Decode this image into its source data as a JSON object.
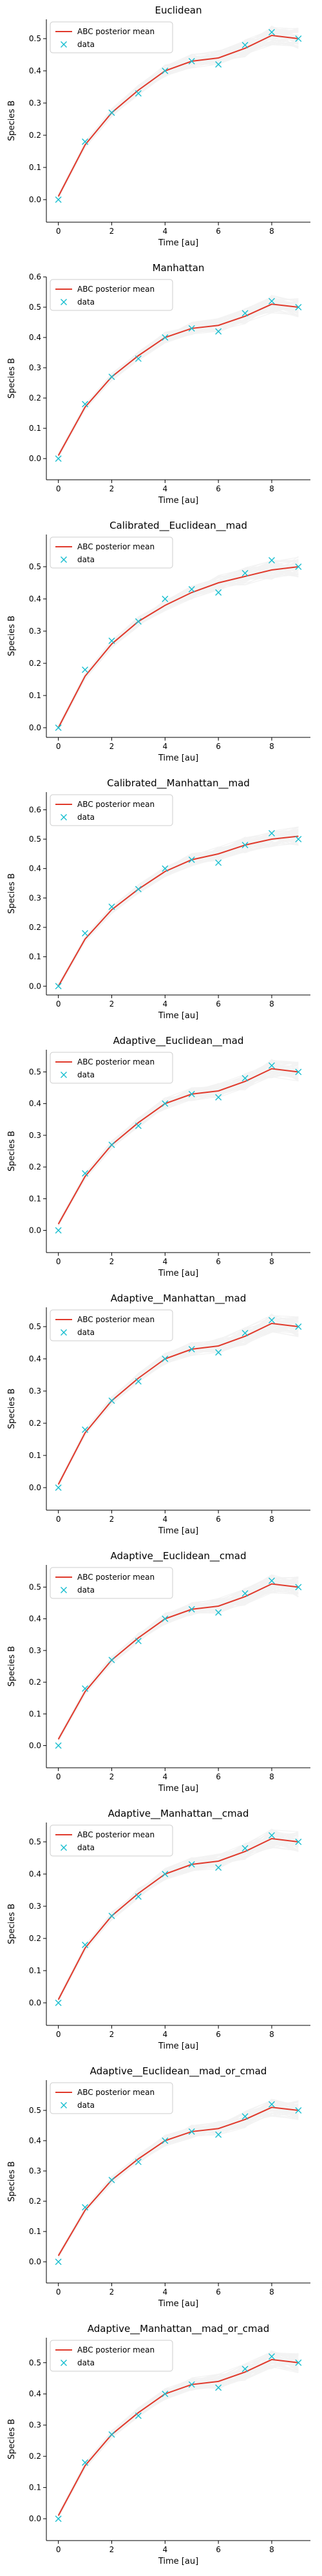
{
  "figure": {
    "xlabel": "Time [au]",
    "ylabel": "Species B",
    "legend_line_label": "ABC posterior mean",
    "legend_marker_label": "data",
    "legend_position": "upper left",
    "grid": false,
    "colors": {
      "mean": "#e0392b",
      "data": "#17becf",
      "samples": "#888888",
      "axis": "#000000"
    }
  },
  "chart_data": [
    {
      "type": "line",
      "title": "Euclidean",
      "xlim": [
        -0.45,
        9.45
      ],
      "ylim": [
        -0.07,
        0.56
      ],
      "xticks": [
        0,
        2,
        4,
        6,
        8
      ],
      "yticks": [
        0.0,
        0.1,
        0.2,
        0.3,
        0.4,
        0.5
      ],
      "tick_fmt": 1,
      "x": [
        0,
        1,
        2,
        3,
        4,
        5,
        6,
        7,
        8,
        9
      ],
      "series": [
        {
          "name": "ABC posterior mean",
          "kind": "line",
          "values": [
            0.01,
            0.17,
            0.27,
            0.34,
            0.4,
            0.43,
            0.44,
            0.47,
            0.51,
            0.5
          ]
        },
        {
          "name": "data",
          "kind": "marker",
          "values": [
            0.0,
            0.18,
            0.27,
            0.33,
            0.4,
            0.43,
            0.42,
            0.48,
            0.52,
            0.5
          ]
        }
      ]
    },
    {
      "type": "line",
      "title": "Manhattan",
      "xlim": [
        -0.45,
        9.45
      ],
      "ylim": [
        -0.07,
        0.6
      ],
      "xticks": [
        0,
        2,
        4,
        6,
        8
      ],
      "yticks": [
        0.0,
        0.1,
        0.2,
        0.3,
        0.4,
        0.5,
        0.6
      ],
      "tick_fmt": 1,
      "x": [
        0,
        1,
        2,
        3,
        4,
        5,
        6,
        7,
        8,
        9
      ],
      "series": [
        {
          "name": "ABC posterior mean",
          "kind": "line",
          "values": [
            0.01,
            0.17,
            0.27,
            0.34,
            0.4,
            0.43,
            0.44,
            0.47,
            0.51,
            0.5
          ]
        },
        {
          "name": "data",
          "kind": "marker",
          "values": [
            0.0,
            0.18,
            0.27,
            0.33,
            0.4,
            0.43,
            0.42,
            0.48,
            0.52,
            0.5
          ]
        }
      ]
    },
    {
      "type": "line",
      "title": "Calibrated__Euclidean__mad",
      "xlim": [
        -0.45,
        9.45
      ],
      "ylim": [
        -0.03,
        0.6
      ],
      "xticks": [
        0,
        2,
        4,
        6,
        8
      ],
      "yticks": [
        0.0,
        0.1,
        0.2,
        0.3,
        0.4,
        0.5
      ],
      "tick_fmt": 1,
      "x": [
        0,
        1,
        2,
        3,
        4,
        5,
        6,
        7,
        8,
        9
      ],
      "series": [
        {
          "name": "ABC posterior mean",
          "kind": "line",
          "values": [
            0.0,
            0.16,
            0.26,
            0.33,
            0.38,
            0.42,
            0.45,
            0.47,
            0.49,
            0.5
          ]
        },
        {
          "name": "data",
          "kind": "marker",
          "values": [
            0.0,
            0.18,
            0.27,
            0.33,
            0.4,
            0.43,
            0.42,
            0.48,
            0.52,
            0.5
          ]
        }
      ]
    },
    {
      "type": "line",
      "title": "Calibrated__Manhattan__mad",
      "xlim": [
        -0.45,
        9.45
      ],
      "ylim": [
        -0.03,
        0.66
      ],
      "xticks": [
        0,
        2,
        4,
        6,
        8
      ],
      "yticks": [
        0.0,
        0.1,
        0.2,
        0.3,
        0.4,
        0.5,
        0.6
      ],
      "tick_fmt": 1,
      "x": [
        0,
        1,
        2,
        3,
        4,
        5,
        6,
        7,
        8,
        9
      ],
      "series": [
        {
          "name": "ABC posterior mean",
          "kind": "line",
          "values": [
            0.0,
            0.16,
            0.26,
            0.33,
            0.39,
            0.43,
            0.45,
            0.48,
            0.5,
            0.51
          ]
        },
        {
          "name": "data",
          "kind": "marker",
          "values": [
            0.0,
            0.18,
            0.27,
            0.33,
            0.4,
            0.43,
            0.42,
            0.48,
            0.52,
            0.5
          ]
        }
      ]
    },
    {
      "type": "line",
      "title": "Adaptive__Euclidean__mad",
      "xlim": [
        -0.45,
        9.45
      ],
      "ylim": [
        -0.07,
        0.57
      ],
      "xticks": [
        0,
        2,
        4,
        6,
        8
      ],
      "yticks": [
        0.0,
        0.1,
        0.2,
        0.3,
        0.4,
        0.5
      ],
      "tick_fmt": 1,
      "x": [
        0,
        1,
        2,
        3,
        4,
        5,
        6,
        7,
        8,
        9
      ],
      "series": [
        {
          "name": "ABC posterior mean",
          "kind": "line",
          "values": [
            0.02,
            0.17,
            0.27,
            0.34,
            0.4,
            0.43,
            0.44,
            0.47,
            0.51,
            0.5
          ]
        },
        {
          "name": "data",
          "kind": "marker",
          "values": [
            0.0,
            0.18,
            0.27,
            0.33,
            0.4,
            0.43,
            0.42,
            0.48,
            0.52,
            0.5
          ]
        }
      ]
    },
    {
      "type": "line",
      "title": "Adaptive__Manhattan__mad",
      "xlim": [
        -0.45,
        9.45
      ],
      "ylim": [
        -0.07,
        0.56
      ],
      "xticks": [
        0,
        2,
        4,
        6,
        8
      ],
      "yticks": [
        0.0,
        0.1,
        0.2,
        0.3,
        0.4,
        0.5
      ],
      "tick_fmt": 1,
      "x": [
        0,
        1,
        2,
        3,
        4,
        5,
        6,
        7,
        8,
        9
      ],
      "series": [
        {
          "name": "ABC posterior mean",
          "kind": "line",
          "values": [
            0.01,
            0.17,
            0.27,
            0.34,
            0.4,
            0.43,
            0.44,
            0.47,
            0.51,
            0.5
          ]
        },
        {
          "name": "data",
          "kind": "marker",
          "values": [
            0.0,
            0.18,
            0.27,
            0.33,
            0.4,
            0.43,
            0.42,
            0.48,
            0.52,
            0.5
          ]
        }
      ]
    },
    {
      "type": "line",
      "title": "Adaptive__Euclidean__cmad",
      "xlim": [
        -0.45,
        9.45
      ],
      "ylim": [
        -0.07,
        0.57
      ],
      "xticks": [
        0,
        2,
        4,
        6,
        8
      ],
      "yticks": [
        0.0,
        0.1,
        0.2,
        0.3,
        0.4,
        0.5
      ],
      "tick_fmt": 1,
      "x": [
        0,
        1,
        2,
        3,
        4,
        5,
        6,
        7,
        8,
        9
      ],
      "series": [
        {
          "name": "ABC posterior mean",
          "kind": "line",
          "values": [
            0.02,
            0.17,
            0.27,
            0.34,
            0.4,
            0.43,
            0.44,
            0.47,
            0.51,
            0.5
          ]
        },
        {
          "name": "data",
          "kind": "marker",
          "values": [
            0.0,
            0.18,
            0.27,
            0.33,
            0.4,
            0.43,
            0.42,
            0.48,
            0.52,
            0.5
          ]
        }
      ]
    },
    {
      "type": "line",
      "title": "Adaptive__Manhattan__cmad",
      "xlim": [
        -0.45,
        9.45
      ],
      "ylim": [
        -0.07,
        0.56
      ],
      "xticks": [
        0,
        2,
        4,
        6,
        8
      ],
      "yticks": [
        0.0,
        0.1,
        0.2,
        0.3,
        0.4,
        0.5
      ],
      "tick_fmt": 1,
      "x": [
        0,
        1,
        2,
        3,
        4,
        5,
        6,
        7,
        8,
        9
      ],
      "series": [
        {
          "name": "ABC posterior mean",
          "kind": "line",
          "values": [
            0.01,
            0.17,
            0.27,
            0.34,
            0.4,
            0.43,
            0.44,
            0.47,
            0.51,
            0.5
          ]
        },
        {
          "name": "data",
          "kind": "marker",
          "values": [
            0.0,
            0.18,
            0.27,
            0.33,
            0.4,
            0.43,
            0.42,
            0.48,
            0.52,
            0.5
          ]
        }
      ]
    },
    {
      "type": "line",
      "title": "Adaptive__Euclidean__mad_or_cmad",
      "xlim": [
        -0.45,
        9.45
      ],
      "ylim": [
        -0.07,
        0.6
      ],
      "xticks": [
        0,
        2,
        4,
        6,
        8
      ],
      "yticks": [
        0.0,
        0.1,
        0.2,
        0.3,
        0.4,
        0.5
      ],
      "tick_fmt": 1,
      "x": [
        0,
        1,
        2,
        3,
        4,
        5,
        6,
        7,
        8,
        9
      ],
      "series": [
        {
          "name": "ABC posterior mean",
          "kind": "line",
          "values": [
            0.02,
            0.17,
            0.27,
            0.34,
            0.4,
            0.43,
            0.44,
            0.47,
            0.51,
            0.5
          ]
        },
        {
          "name": "data",
          "kind": "marker",
          "values": [
            0.0,
            0.18,
            0.27,
            0.33,
            0.4,
            0.43,
            0.42,
            0.48,
            0.52,
            0.5
          ]
        }
      ]
    },
    {
      "type": "line",
      "title": "Adaptive__Manhattan__mad_or_cmad",
      "xlim": [
        -0.45,
        9.45
      ],
      "ylim": [
        -0.07,
        0.58
      ],
      "xticks": [
        0,
        2,
        4,
        6,
        8
      ],
      "yticks": [
        0.0,
        0.1,
        0.2,
        0.3,
        0.4,
        0.5
      ],
      "tick_fmt": 1,
      "x": [
        0,
        1,
        2,
        3,
        4,
        5,
        6,
        7,
        8,
        9
      ],
      "series": [
        {
          "name": "ABC posterior mean",
          "kind": "line",
          "values": [
            0.01,
            0.17,
            0.27,
            0.34,
            0.4,
            0.43,
            0.44,
            0.47,
            0.51,
            0.5
          ]
        },
        {
          "name": "data",
          "kind": "marker",
          "values": [
            0.0,
            0.18,
            0.27,
            0.33,
            0.4,
            0.43,
            0.42,
            0.48,
            0.52,
            0.5
          ]
        }
      ]
    }
  ]
}
